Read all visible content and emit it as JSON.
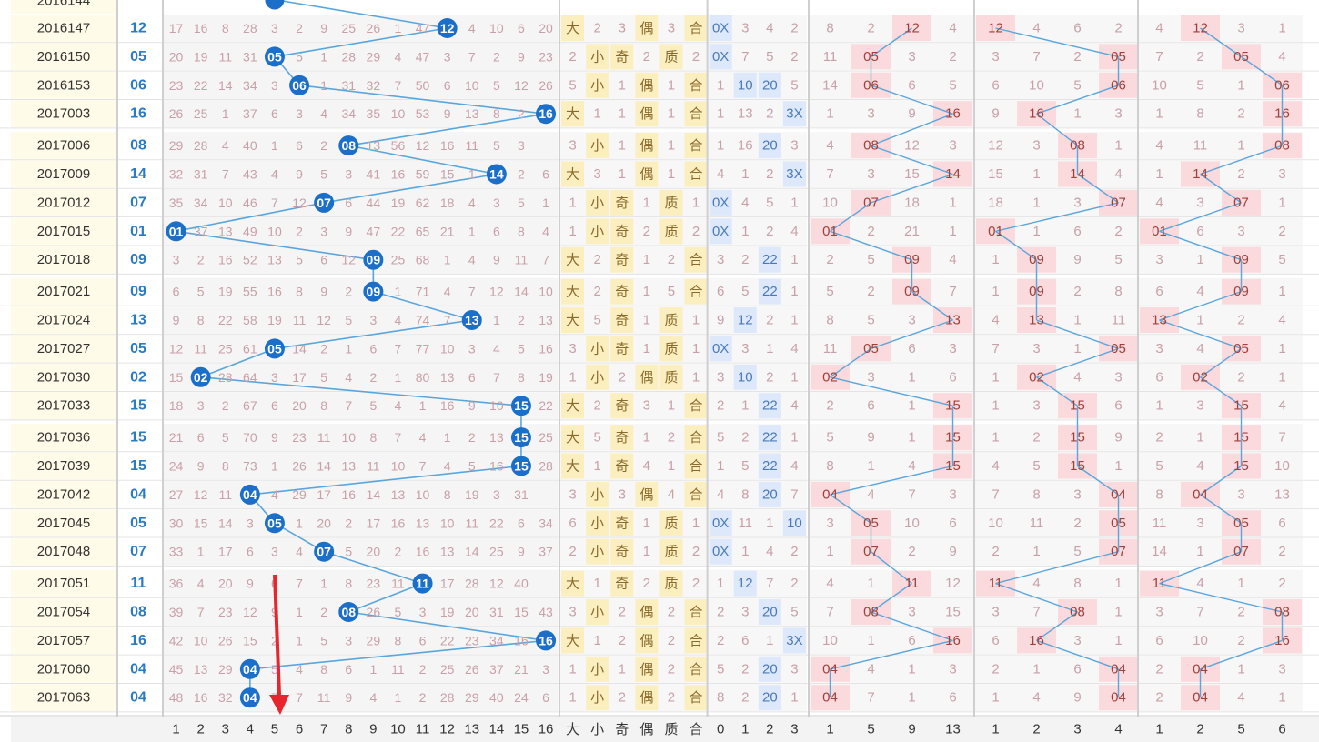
{
  "chart_data": {
    "type": "table",
    "title": "",
    "rows": [
      {
        "period": "2016147",
        "value": "12",
        "miss": [
          17,
          16,
          8,
          28,
          3,
          2,
          9,
          25,
          26,
          1,
          47,
          12,
          4,
          10,
          6,
          20
        ],
        "size": "大",
        "c2": "2",
        "c3": "3",
        "oe": "偶",
        "c5": "3",
        "pc": "合",
        "c7": "0X",
        "c8": "3",
        "c9": "4",
        "c10": "2",
        "c11": "3X",
        "g1": [
          "8",
          "2",
          "12",
          "4"
        ],
        "g2": [
          "12",
          "4",
          "6",
          "2"
        ],
        "g3": [
          "4",
          "12",
          "3",
          "1"
        ]
      },
      {
        "period": "2016150",
        "value": "05",
        "miss": [
          20,
          19,
          11,
          31,
          5,
          5,
          1,
          28,
          29,
          4,
          47,
          3,
          7,
          2,
          9,
          23
        ],
        "size": "2",
        "c2": "小",
        "c3": "奇",
        "oe": "2",
        "c5": "质",
        "pc": "2",
        "c7": "0X",
        "c8": "7",
        "c9": "5",
        "c10": "2",
        "c11": "1",
        "g1": [
          "11",
          "05",
          "3",
          "2"
        ],
        "g2": [
          "3",
          "7",
          "2",
          "05"
        ],
        "g3": [
          "7",
          "2",
          "05",
          "4"
        ]
      },
      {
        "period": "2016153",
        "value": "06",
        "miss": [
          23,
          22,
          14,
          34,
          3,
          6,
          1,
          31,
          32,
          7,
          50,
          6,
          10,
          5,
          12,
          26
        ],
        "size": "5",
        "c2": "小",
        "c3": "1",
        "oe": "偶",
        "c5": "1",
        "pc": "合",
        "c7": "1",
        "c8": "10",
        "c9": "20",
        "c10": "5",
        "c11": "",
        "g1": [
          "14",
          "06",
          "6",
          "5"
        ],
        "g2": [
          "6",
          "10",
          "5",
          "06"
        ],
        "g3": [
          "10",
          "5",
          "1",
          "06"
        ]
      },
      {
        "period": "2017003",
        "value": "16",
        "miss": [
          26,
          25,
          1,
          37,
          6,
          3,
          4,
          34,
          35,
          10,
          53,
          9,
          13,
          8,
          2,
          16
        ],
        "size": "大",
        "c2": "1",
        "c3": "1",
        "oe": "偶",
        "c5": "1",
        "pc": "合",
        "c7": "1",
        "c8": "13",
        "c9": "2",
        "c10": "3X",
        "c11": "",
        "g1": [
          "1",
          "3",
          "9",
          "16"
        ],
        "g2": [
          "9",
          "16",
          "1",
          "3"
        ],
        "g3": [
          "1",
          "8",
          "2",
          "16"
        ]
      },
      {
        "period": "2017006",
        "value": "08",
        "miss": [
          29,
          28,
          4,
          40,
          1,
          6,
          2,
          8,
          13,
          56,
          12,
          16,
          11,
          5,
          3,
          ""
        ],
        "size": "3",
        "c2": "小",
        "c3": "1",
        "oe": "偶",
        "c5": "1",
        "pc": "合",
        "c7": "1",
        "c8": "16",
        "c9": "20",
        "c10": "3",
        "c11": "",
        "g1": [
          "4",
          "08",
          "12",
          "3"
        ],
        "g2": [
          "12",
          "3",
          "08",
          "1"
        ],
        "g3": [
          "4",
          "11",
          "1",
          "08"
        ]
      },
      {
        "period": "2017009",
        "value": "14",
        "miss": [
          32,
          31,
          7,
          43,
          4,
          9,
          5,
          3,
          41,
          16,
          59,
          15,
          1,
          14,
          2,
          6
        ],
        "size": "大",
        "c2": "3",
        "c3": "1",
        "oe": "偶",
        "c5": "1",
        "pc": "合",
        "c7": "4",
        "c8": "1",
        "c9": "2",
        "c10": "3X",
        "c11": "",
        "g1": [
          "7",
          "3",
          "15",
          "14"
        ],
        "g2": [
          "15",
          "1",
          "14",
          "4"
        ],
        "g3": [
          "1",
          "14",
          "2",
          "3"
        ]
      },
      {
        "period": "2017012",
        "value": "07",
        "miss": [
          35,
          34,
          10,
          46,
          7,
          12,
          7,
          6,
          44,
          19,
          62,
          18,
          4,
          3,
          5,
          1
        ],
        "size": "1",
        "c2": "小",
        "c3": "奇",
        "oe": "1",
        "c5": "质",
        "pc": "1",
        "c7": "0X",
        "c8": "4",
        "c9": "5",
        "c10": "1",
        "c11": "",
        "g1": [
          "10",
          "07",
          "18",
          "1"
        ],
        "g2": [
          "18",
          "1",
          "3",
          "07"
        ],
        "g3": [
          "4",
          "3",
          "07",
          "1"
        ]
      },
      {
        "period": "2017015",
        "value": "01",
        "miss": [
          1,
          37,
          13,
          49,
          10,
          2,
          3,
          9,
          47,
          22,
          65,
          21,
          1,
          6,
          8,
          4
        ],
        "size": "1",
        "c2": "小",
        "c3": "奇",
        "oe": "2",
        "c5": "质",
        "pc": "2",
        "c7": "0X",
        "c8": "1",
        "c9": "2",
        "c10": "4",
        "c11": "",
        "g1": [
          "01",
          "2",
          "21",
          "1"
        ],
        "g2": [
          "01",
          "1",
          "6",
          "2"
        ],
        "g3": [
          "01",
          "6",
          "3",
          "2"
        ]
      },
      {
        "period": "2017018",
        "value": "09",
        "miss": [
          3,
          2,
          16,
          52,
          13,
          5,
          6,
          12,
          9,
          25,
          68,
          1,
          4,
          9,
          11,
          7
        ],
        "size": "大",
        "c2": "2",
        "c3": "奇",
        "oe": "1",
        "c5": "2",
        "pc": "合",
        "c7": "3",
        "c8": "2",
        "c9": "22",
        "c10": "1",
        "c11": "",
        "g1": [
          "2",
          "5",
          "09",
          "4"
        ],
        "g2": [
          "1",
          "09",
          "9",
          "5"
        ],
        "g3": [
          "3",
          "1",
          "09",
          "5"
        ]
      },
      {
        "period": "2017021",
        "value": "09",
        "miss": [
          6,
          5,
          19,
          55,
          16,
          8,
          9,
          2,
          9,
          1,
          71,
          4,
          7,
          12,
          14,
          10
        ],
        "size": "大",
        "c2": "2",
        "c3": "奇",
        "oe": "1",
        "c5": "5",
        "pc": "合",
        "c7": "6",
        "c8": "5",
        "c9": "22",
        "c10": "1",
        "c11": "",
        "g1": [
          "5",
          "2",
          "09",
          "7"
        ],
        "g2": [
          "1",
          "09",
          "2",
          "8"
        ],
        "g3": [
          "6",
          "4",
          "09",
          "1"
        ]
      },
      {
        "period": "2017024",
        "value": "13",
        "miss": [
          9,
          8,
          22,
          58,
          19,
          11,
          12,
          5,
          3,
          4,
          74,
          7,
          13,
          1,
          2,
          13
        ],
        "size": "大",
        "c2": "5",
        "c3": "奇",
        "oe": "1",
        "c5": "质",
        "pc": "1",
        "c7": "9",
        "c8": "12",
        "c9": "2",
        "c10": "1",
        "c11": "",
        "g1": [
          "8",
          "5",
          "3",
          "13"
        ],
        "g2": [
          "4",
          "13",
          "1",
          "11"
        ],
        "g3": [
          "13",
          "1",
          "2",
          "4"
        ]
      },
      {
        "period": "2017027",
        "value": "05",
        "miss": [
          12,
          11,
          25,
          61,
          5,
          14,
          2,
          1,
          6,
          7,
          77,
          10,
          3,
          4,
          5,
          16
        ],
        "size": "3",
        "c2": "小",
        "c3": "奇",
        "oe": "1",
        "c5": "质",
        "pc": "1",
        "c7": "0X",
        "c8": "3",
        "c9": "1",
        "c10": "4",
        "c11": "",
        "g1": [
          "11",
          "05",
          "6",
          "3"
        ],
        "g2": [
          "7",
          "3",
          "1",
          "05"
        ],
        "g3": [
          "3",
          "4",
          "05",
          "1"
        ]
      },
      {
        "period": "2017030",
        "value": "02",
        "miss": [
          15,
          2,
          28,
          64,
          3,
          17,
          5,
          4,
          2,
          1,
          80,
          13,
          6,
          7,
          8,
          19
        ],
        "size": "1",
        "c2": "小",
        "c3": "2",
        "oe": "偶",
        "c5": "质",
        "pc": "1",
        "c7": "3",
        "c8": "10",
        "c9": "2",
        "c10": "1",
        "c11": "",
        "g1": [
          "02",
          "3",
          "1",
          "6"
        ],
        "g2": [
          "1",
          "02",
          "4",
          "3"
        ],
        "g3": [
          "6",
          "02",
          "2",
          "1"
        ]
      },
      {
        "period": "2017033",
        "value": "15",
        "miss": [
          18,
          3,
          2,
          67,
          6,
          20,
          8,
          7,
          5,
          4,
          1,
          16,
          9,
          10,
          15,
          22
        ],
        "size": "大",
        "c2": "2",
        "c3": "奇",
        "oe": "3",
        "c5": "1",
        "pc": "合",
        "c7": "2",
        "c8": "1",
        "c9": "22",
        "c10": "4",
        "c11": "",
        "g1": [
          "2",
          "6",
          "1",
          "15"
        ],
        "g2": [
          "1",
          "3",
          "15",
          "6"
        ],
        "g3": [
          "1",
          "3",
          "15",
          "4"
        ]
      },
      {
        "period": "2017036",
        "value": "15",
        "miss": [
          21,
          6,
          5,
          70,
          9,
          23,
          11,
          10,
          8,
          7,
          4,
          1,
          2,
          13,
          15,
          25
        ],
        "size": "大",
        "c2": "5",
        "c3": "奇",
        "oe": "1",
        "c5": "2",
        "pc": "合",
        "c7": "5",
        "c8": "2",
        "c9": "22",
        "c10": "1",
        "c11": "",
        "g1": [
          "5",
          "9",
          "1",
          "15"
        ],
        "g2": [
          "1",
          "2",
          "15",
          "9"
        ],
        "g3": [
          "2",
          "1",
          "15",
          "7"
        ]
      },
      {
        "period": "2017039",
        "value": "15",
        "miss": [
          24,
          9,
          8,
          73,
          1,
          26,
          14,
          13,
          11,
          10,
          7,
          4,
          5,
          16,
          15,
          28
        ],
        "size": "大",
        "c2": "1",
        "c3": "奇",
        "oe": "4",
        "c5": "1",
        "pc": "合",
        "c7": "1",
        "c8": "5",
        "c9": "22",
        "c10": "4",
        "c11": "",
        "g1": [
          "8",
          "1",
          "4",
          "15"
        ],
        "g2": [
          "4",
          "5",
          "15",
          "1"
        ],
        "g3": [
          "5",
          "4",
          "15",
          "10"
        ]
      },
      {
        "period": "2017042",
        "value": "04",
        "miss": [
          27,
          12,
          11,
          4,
          4,
          29,
          17,
          16,
          14,
          13,
          10,
          8,
          19,
          3,
          31,
          ""
        ],
        "size": "3",
        "c2": "小",
        "c3": "3",
        "oe": "偶",
        "c5": "4",
        "pc": "合",
        "c7": "4",
        "c8": "8",
        "c9": "20",
        "c10": "7",
        "c11": "",
        "g1": [
          "04",
          "4",
          "7",
          "3"
        ],
        "g2": [
          "7",
          "8",
          "3",
          "04"
        ],
        "g3": [
          "8",
          "04",
          "3",
          "13"
        ]
      },
      {
        "period": "2017045",
        "value": "05",
        "miss": [
          30,
          15,
          14,
          3,
          5,
          1,
          20,
          2,
          17,
          16,
          13,
          10,
          11,
          22,
          6,
          34
        ],
        "size": "6",
        "c2": "小",
        "c3": "奇",
        "oe": "1",
        "c5": "质",
        "pc": "1",
        "c7": "0X",
        "c8": "11",
        "c9": "1",
        "c10": "10",
        "c11": "",
        "g1": [
          "3",
          "05",
          "10",
          "6"
        ],
        "g2": [
          "10",
          "11",
          "2",
          "05"
        ],
        "g3": [
          "11",
          "3",
          "05",
          "6"
        ]
      },
      {
        "period": "2017048",
        "value": "07",
        "miss": [
          33,
          1,
          17,
          6,
          3,
          4,
          7,
          5,
          20,
          2,
          16,
          13,
          14,
          25,
          9,
          37
        ],
        "size": "2",
        "c2": "小",
        "c3": "奇",
        "oe": "1",
        "c5": "质",
        "pc": "2",
        "c7": "0X",
        "c8": "1",
        "c9": "4",
        "c10": "2",
        "c11": "",
        "g1": [
          "1",
          "07",
          "2",
          "9"
        ],
        "g2": [
          "2",
          "1",
          "5",
          "07"
        ],
        "g3": [
          "14",
          "1",
          "07",
          "2"
        ]
      },
      {
        "period": "2017051",
        "value": "11",
        "miss": [
          36,
          4,
          20,
          9,
          6,
          7,
          1,
          8,
          23,
          11,
          16,
          17,
          28,
          12,
          40,
          ""
        ],
        "size": "大",
        "c2": "1",
        "c3": "奇",
        "oe": "2",
        "c5": "质",
        "pc": "2",
        "c7": "1",
        "c8": "12",
        "c9": "7",
        "c10": "2",
        "c11": "",
        "g1": [
          "4",
          "1",
          "11",
          "12"
        ],
        "g2": [
          "11",
          "4",
          "8",
          "1"
        ],
        "g3": [
          "11",
          "4",
          "1",
          "2"
        ]
      },
      {
        "period": "2017054",
        "value": "08",
        "miss": [
          39,
          7,
          23,
          12,
          9,
          1,
          2,
          8,
          26,
          5,
          3,
          19,
          20,
          31,
          15,
          43
        ],
        "size": "3",
        "c2": "小",
        "c3": "2",
        "oe": "偶",
        "c5": "2",
        "pc": "合",
        "c7": "2",
        "c8": "3",
        "c9": "20",
        "c10": "5",
        "c11": "",
        "g1": [
          "7",
          "08",
          "3",
          "15"
        ],
        "g2": [
          "3",
          "7",
          "08",
          "1"
        ],
        "g3": [
          "3",
          "7",
          "2",
          "08"
        ]
      },
      {
        "period": "2017057",
        "value": "16",
        "miss": [
          42,
          10,
          26,
          15,
          2,
          1,
          5,
          3,
          29,
          8,
          6,
          22,
          23,
          34,
          16,
          ""
        ],
        "size": "大",
        "c2": "1",
        "c3": "2",
        "oe": "偶",
        "c5": "2",
        "pc": "合",
        "c7": "2",
        "c8": "6",
        "c9": "1",
        "c10": "3X",
        "c11": "",
        "g1": [
          "10",
          "1",
          "6",
          "16"
        ],
        "g2": [
          "6",
          "16",
          "3",
          "1"
        ],
        "g3": [
          "6",
          "10",
          "2",
          "16"
        ]
      },
      {
        "period": "2017060",
        "value": "04",
        "miss": [
          45,
          13,
          29,
          4,
          5,
          4,
          8,
          6,
          1,
          11,
          2,
          25,
          26,
          37,
          21,
          3
        ],
        "size": "1",
        "c2": "小",
        "c3": "1",
        "oe": "偶",
        "c5": "2",
        "pc": "合",
        "c7": "5",
        "c8": "2",
        "c9": "20",
        "c10": "3",
        "c11": "",
        "g1": [
          "04",
          "4",
          "1",
          "3"
        ],
        "g2": [
          "2",
          "1",
          "6",
          "04"
        ],
        "g3": [
          "2",
          "04",
          "1",
          "3"
        ]
      },
      {
        "period": "2017063",
        "value": "04",
        "miss": [
          48,
          16,
          32,
          4,
          7,
          7,
          11,
          9,
          4,
          1,
          2,
          28,
          29,
          40,
          24,
          6
        ],
        "size": "1",
        "c2": "小",
        "c3": "2",
        "oe": "偶",
        "c5": "2",
        "pc": "合",
        "c7": "8",
        "c8": "2",
        "c9": "20",
        "c10": "1",
        "c11": "",
        "g1": [
          "04",
          "7",
          "1",
          "6"
        ],
        "g2": [
          "1",
          "4",
          "9",
          "04"
        ],
        "g3": [
          "2",
          "04",
          "4",
          "1"
        ]
      }
    ],
    "footer_labels": [
      "1",
      "2",
      "3",
      "4",
      "5",
      "6",
      "7",
      "8",
      "9",
      "10",
      "11",
      "12",
      "13",
      "14",
      "15",
      "16",
      "大",
      "小",
      "奇",
      "偶",
      "质",
      "合",
      "0",
      "1",
      "2",
      "3",
      "1",
      "5",
      "9",
      "13",
      "1",
      "2",
      "3",
      "4",
      "1",
      "2",
      "5",
      "6"
    ],
    "colors": {
      "ball": "#1b6fc8",
      "line": "#5aa6dc",
      "pink_cell": "#fadadd",
      "yellow_cell": "#fbefc0",
      "blue_cell": "#dde9fb",
      "period_bg": "#fffbe9",
      "value_text": "#2a7ac4",
      "arrow": "#e8242c"
    }
  }
}
